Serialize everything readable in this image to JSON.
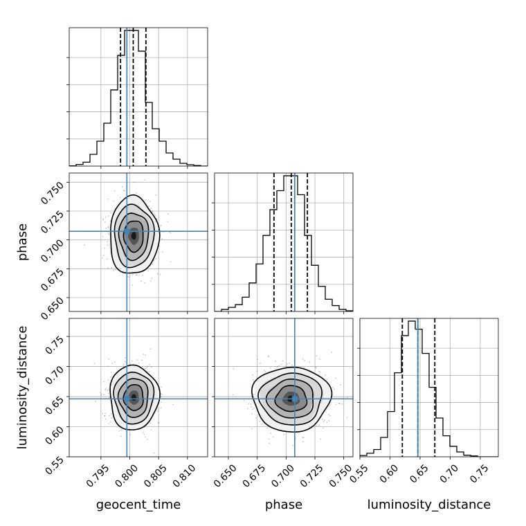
{
  "chart_data": {
    "type": "corner",
    "parameters": [
      {
        "name": "geocent_time",
        "range": [
          0.7895,
          0.8135
        ],
        "ticks": [
          0.795,
          0.8,
          0.805,
          0.81
        ],
        "tick_labels": [
          "0.795",
          "0.800",
          "0.805",
          "0.810"
        ],
        "truth": 0.7995,
        "quantiles": [
          0.7984,
          0.8006,
          0.8028
        ],
        "hist_edges_start": 0.7895,
        "hist_bin_width": 0.0012,
        "hist_counts": [
          0.2,
          1.2,
          2.8,
          8.5,
          18,
          31,
          55,
          80,
          98,
          98,
          83,
          46,
          27,
          18,
          9.5,
          5,
          2,
          1,
          0.4,
          0
        ]
      },
      {
        "name": "phase",
        "range": [
          0.638,
          0.758
        ],
        "ticks": [
          0.65,
          0.675,
          0.7,
          0.725,
          0.75
        ],
        "tick_labels": [
          "0.650",
          "0.675",
          "0.700",
          "0.725",
          "0.750"
        ],
        "truth": 0.7075,
        "quantiles": [
          0.6895,
          0.7045,
          0.7185
        ],
        "hist_edges_start": 0.638,
        "hist_bin_width": 0.006,
        "hist_counts": [
          0,
          1.5,
          3,
          5,
          10.5,
          21,
          35,
          56,
          75,
          89,
          100,
          100,
          86,
          56,
          34,
          18.5,
          9,
          4.3,
          1.5,
          0.5
        ]
      },
      {
        "name": "luminosity_distance",
        "range": [
          0.55,
          0.78
        ],
        "ticks": [
          0.55,
          0.6,
          0.65,
          0.7,
          0.75
        ],
        "tick_labels": [
          "0.55",
          "0.60",
          "0.65",
          "0.70",
          "0.75"
        ],
        "truth": 0.6463,
        "quantiles": [
          0.6205,
          0.6463,
          0.6745
        ],
        "hist_edges_start": 0.55,
        "hist_bin_width": 0.0115,
        "hist_counts": [
          0.8,
          2.2,
          4.5,
          12,
          28,
          52,
          75,
          84,
          79,
          64,
          43,
          24,
          13,
          6.5,
          3,
          1,
          0.5,
          0,
          0,
          0
        ]
      }
    ],
    "pairs": [
      {
        "x": 0,
        "y": 1,
        "center": [
          0.8007,
          0.7035
        ],
        "sigma": [
          0.0017,
          0.0135
        ]
      },
      {
        "x": 0,
        "y": 2,
        "center": [
          0.8007,
          0.6485
        ],
        "sigma": [
          0.0017,
          0.0215
        ]
      },
      {
        "x": 1,
        "y": 2,
        "center": [
          0.7045,
          0.6463
        ],
        "sigma": [
          0.0135,
          0.0215
        ]
      }
    ],
    "truth_color": "#4682b4",
    "line_color": "#000000",
    "grid": true
  }
}
